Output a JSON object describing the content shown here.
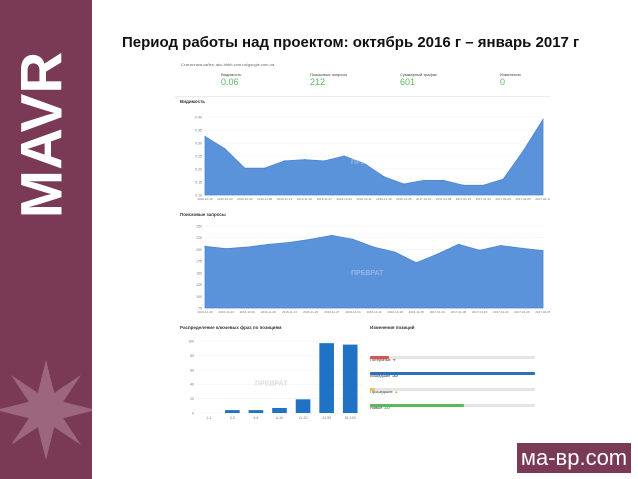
{
  "slide_title": "Период работы над проектом: октябрь 2016 г – январь 2017 г",
  "brand": "MAVR",
  "logo": "ма-вр.com",
  "colors": {
    "sidebar": "#7a3a55",
    "area": "#4a86d4",
    "area_fill": "#5b93db",
    "bar": "#1f72c4",
    "green": "#5cb85c",
    "red": "#d9534f",
    "blue": "#2f6fc0",
    "yellow": "#e6c44c"
  },
  "stats_panel": {
    "site_line": "Статистика сайта: abc-bbbb.com.ua/google.com.ua",
    "stats": [
      {
        "label": "Видимость",
        "value": "0.06"
      },
      {
        "label": "Поисковые запросы",
        "value": "212"
      },
      {
        "label": "Суммарный трафик",
        "value": "601"
      },
      {
        "label": "Изменения",
        "value": "0"
      }
    ]
  },
  "visibility_chart": {
    "title": "Видимость",
    "y_ticks": [
      "0.40",
      "0.35",
      "0.30",
      "0.25",
      "0.20",
      "0.15",
      "0.10"
    ],
    "x_ticks": [
      "2016-10-16",
      "2016-10-23",
      "2016-10-30",
      "2016-11-06",
      "2016-11-13",
      "2016-11-20",
      "2016-11-27",
      "2016-12-04",
      "2016-12-11",
      "2016-12-18",
      "2016-12-25",
      "2017-01-01",
      "2017-01-08",
      "2017-01-15",
      "2017-01-22",
      "2017-01-29",
      "2017-02-05",
      "2017-02-12"
    ],
    "watermark": "ПРЕВРАТ"
  },
  "queries_chart": {
    "title": "Поисковые запросы",
    "y_ticks": [
      "250",
      "225",
      "200",
      "175",
      "150",
      "125",
      "100",
      "75"
    ],
    "x_ticks": [
      "2016-10-16",
      "2016-10-23",
      "2016-10-30",
      "2016-11-06",
      "2016-11-13",
      "2016-11-20",
      "2016-11-27",
      "2016-12-04",
      "2016-12-11",
      "2016-12-18",
      "2016-12-25",
      "2017-01-01",
      "2017-01-08",
      "2017-01-15",
      "2017-01-22",
      "2017-01-29",
      "2017-02-05"
    ],
    "watermark": "ПРЕВРАТ"
  },
  "bar_chart": {
    "title": "Распределение ключевых фраз по позициям",
    "y_ticks": [
      "100",
      "80",
      "60",
      "40",
      "20",
      "0"
    ],
    "watermark": "ПРЕВРАТ"
  },
  "position_changes": {
    "title": "Изменения позиций",
    "rows": [
      {
        "label": "Потеряные",
        "count": "4"
      },
      {
        "label": "Вошедшие",
        "count": "35"
      },
      {
        "label": "Прошедшие",
        "count": "1"
      },
      {
        "label": "Новые",
        "count": "20"
      }
    ]
  },
  "chart_data": [
    {
      "type": "area",
      "title": "Видимость",
      "x": [
        "2016-10-16",
        "2016-10-23",
        "2016-10-30",
        "2016-11-06",
        "2016-11-13",
        "2016-11-20",
        "2016-11-27",
        "2016-12-04",
        "2016-12-11",
        "2016-12-18",
        "2016-12-25",
        "2017-01-01",
        "2017-01-08",
        "2017-01-15",
        "2017-01-22",
        "2017-01-29",
        "2017-02-05",
        "2017-02-12"
      ],
      "values": [
        0.34,
        0.29,
        0.21,
        0.21,
        0.24,
        0.245,
        0.24,
        0.26,
        0.23,
        0.175,
        0.145,
        0.16,
        0.16,
        0.14,
        0.14,
        0.165,
        0.28,
        0.41
      ],
      "ylim": [
        0.1,
        0.42
      ]
    },
    {
      "type": "area",
      "title": "Поисковые запросы",
      "x": [
        "2016-10-16",
        "2016-10-23",
        "2016-10-30",
        "2016-11-06",
        "2016-11-13",
        "2016-11-20",
        "2016-11-27",
        "2016-12-04",
        "2016-12-11",
        "2016-12-18",
        "2016-12-25",
        "2017-01-01",
        "2017-01-08",
        "2017-01-15",
        "2017-01-22",
        "2017-01-29",
        "2017-02-05"
      ],
      "values": [
        208,
        202,
        206,
        213,
        218,
        226,
        236,
        226,
        206,
        193,
        166,
        188,
        213,
        198,
        210,
        203,
        197
      ],
      "ylim": [
        50,
        260
      ]
    },
    {
      "type": "bar",
      "title": "Распределение ключевых фраз по позициям",
      "categories": [
        "1-1",
        "2-3",
        "4-5",
        "6-10",
        "11-20",
        "21-50",
        "51-100"
      ],
      "values": [
        0,
        4,
        4,
        7,
        19,
        97,
        95
      ],
      "ylim": [
        0,
        100
      ]
    },
    {
      "type": "bar",
      "title": "Изменения позиций",
      "categories": [
        "Потеряные",
        "Вошедшие",
        "Прошедшие",
        "Новые"
      ],
      "values": [
        4,
        35,
        1,
        20
      ]
    }
  ]
}
